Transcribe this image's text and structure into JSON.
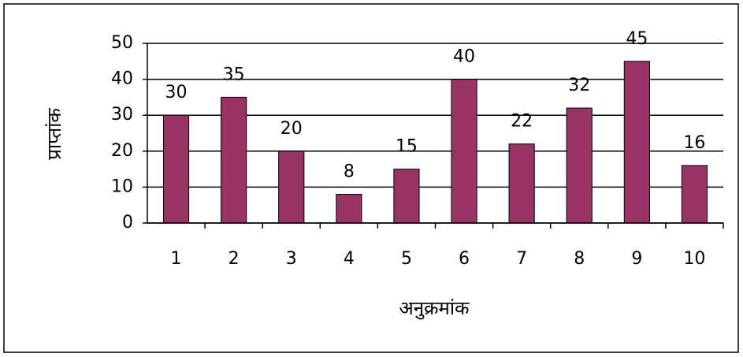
{
  "chart_data": {
    "type": "bar",
    "categories": [
      "1",
      "2",
      "3",
      "4",
      "5",
      "6",
      "7",
      "8",
      "9",
      "10"
    ],
    "values": [
      30,
      35,
      20,
      8,
      15,
      40,
      22,
      32,
      45,
      16
    ],
    "color": "#993366",
    "xlabel": "अनुक्रमांक",
    "ylabel": "प्राप्तांक",
    "ylim": [
      0,
      50
    ],
    "yticks": [
      0,
      10,
      20,
      30,
      40,
      50
    ],
    "grid": true,
    "data_labels": true
  }
}
